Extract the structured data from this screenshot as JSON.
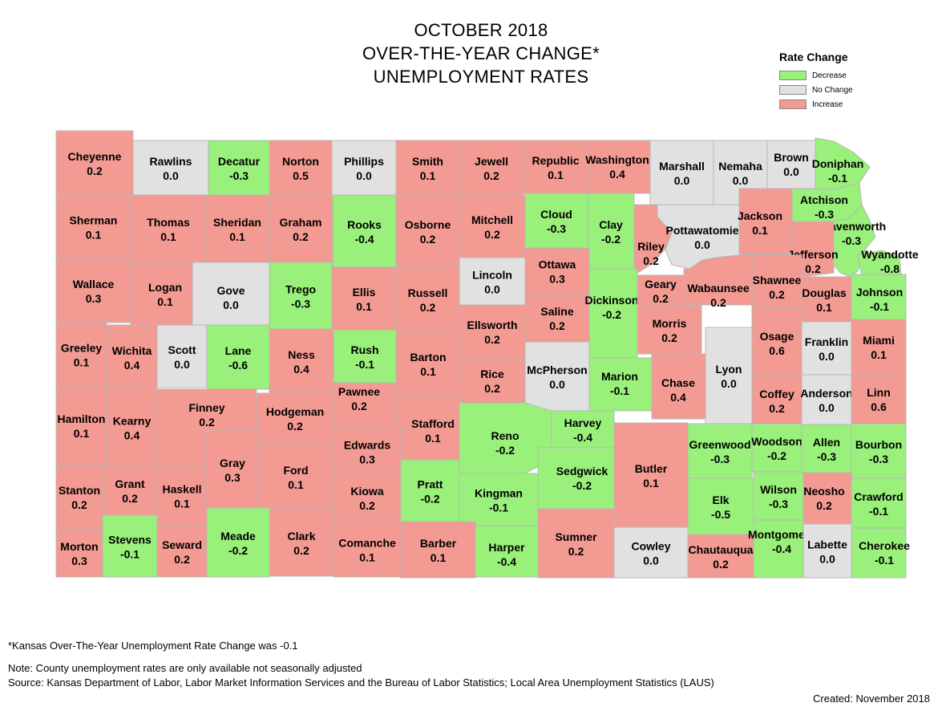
{
  "title": [
    "OCTOBER 2018",
    "OVER-THE-YEAR CHANGE*",
    "UNEMPLOYMENT RATES"
  ],
  "legend": {
    "title": "Rate Change",
    "items": [
      {
        "label": "Decrease",
        "color": "#99f07a"
      },
      {
        "label": "No Change",
        "color": "#e1e1e1"
      },
      {
        "label": "Increase",
        "color": "#f39a92"
      }
    ]
  },
  "counties": [
    {
      "name": "Cheyenne",
      "value": "0.2",
      "change": "increase"
    },
    {
      "name": "Rawlins",
      "value": "0.0",
      "change": "none"
    },
    {
      "name": "Decatur",
      "value": "-0.3",
      "change": "decrease"
    },
    {
      "name": "Norton",
      "value": "0.5",
      "change": "increase"
    },
    {
      "name": "Phillips",
      "value": "0.0",
      "change": "none"
    },
    {
      "name": "Smith",
      "value": "0.1",
      "change": "increase"
    },
    {
      "name": "Jewell",
      "value": "0.2",
      "change": "increase"
    },
    {
      "name": "Republic",
      "value": "0.1",
      "change": "increase"
    },
    {
      "name": "Washington",
      "value": "0.4",
      "change": "increase"
    },
    {
      "name": "Marshall",
      "value": "0.0",
      "change": "none"
    },
    {
      "name": "Nemaha",
      "value": "0.0",
      "change": "none"
    },
    {
      "name": "Brown",
      "value": "0.0",
      "change": "none"
    },
    {
      "name": "Doniphan",
      "value": "-0.1",
      "change": "decrease"
    },
    {
      "name": "Sherman",
      "value": "0.1",
      "change": "increase"
    },
    {
      "name": "Thomas",
      "value": "0.1",
      "change": "increase"
    },
    {
      "name": "Sheridan",
      "value": "0.1",
      "change": "increase"
    },
    {
      "name": "Graham",
      "value": "0.2",
      "change": "increase"
    },
    {
      "name": "Rooks",
      "value": "-0.4",
      "change": "decrease"
    },
    {
      "name": "Osborne",
      "value": "0.2",
      "change": "increase"
    },
    {
      "name": "Mitchell",
      "value": "0.2",
      "change": "increase"
    },
    {
      "name": "Cloud",
      "value": "-0.3",
      "change": "decrease"
    },
    {
      "name": "Clay",
      "value": "-0.2",
      "change": "decrease"
    },
    {
      "name": "Riley",
      "value": "0.2",
      "change": "increase"
    },
    {
      "name": "Pottawatomie",
      "value": "0.0",
      "change": "none"
    },
    {
      "name": "Jackson",
      "value": "0.1",
      "change": "increase"
    },
    {
      "name": "Atchison",
      "value": "-0.3",
      "change": "decrease"
    },
    {
      "name": "Leavenworth",
      "value": "-0.3",
      "change": "decrease"
    },
    {
      "name": "Jefferson",
      "value": "0.2",
      "change": "increase"
    },
    {
      "name": "Wyandotte",
      "value": "-0.8",
      "change": "decrease"
    },
    {
      "name": "Wallace",
      "value": "0.3",
      "change": "increase"
    },
    {
      "name": "Logan",
      "value": "0.1",
      "change": "increase"
    },
    {
      "name": "Gove",
      "value": "0.0",
      "change": "none"
    },
    {
      "name": "Trego",
      "value": "-0.3",
      "change": "decrease"
    },
    {
      "name": "Ellis",
      "value": "0.1",
      "change": "increase"
    },
    {
      "name": "Russell",
      "value": "0.2",
      "change": "increase"
    },
    {
      "name": "Lincoln",
      "value": "0.0",
      "change": "none"
    },
    {
      "name": "Ottawa",
      "value": "0.3",
      "change": "increase"
    },
    {
      "name": "Saline",
      "value": "0.2",
      "change": "increase"
    },
    {
      "name": "Dickinson",
      "value": "-0.2",
      "change": "decrease"
    },
    {
      "name": "Geary",
      "value": "0.2",
      "change": "increase"
    },
    {
      "name": "Wabaunsee",
      "value": "0.2",
      "change": "increase"
    },
    {
      "name": "Shawnee",
      "value": "0.2",
      "change": "increase"
    },
    {
      "name": "Douglas",
      "value": "0.1",
      "change": "increase"
    },
    {
      "name": "Johnson",
      "value": "-0.1",
      "change": "decrease"
    },
    {
      "name": "Greeley",
      "value": "0.1",
      "change": "increase"
    },
    {
      "name": "Wichita",
      "value": "0.4",
      "change": "increase"
    },
    {
      "name": "Scott",
      "value": "0.0",
      "change": "none"
    },
    {
      "name": "Lane",
      "value": "-0.6",
      "change": "decrease"
    },
    {
      "name": "Ness",
      "value": "0.4",
      "change": "increase"
    },
    {
      "name": "Rush",
      "value": "-0.1",
      "change": "decrease"
    },
    {
      "name": "Barton",
      "value": "0.1",
      "change": "increase"
    },
    {
      "name": "Ellsworth",
      "value": "0.2",
      "change": "increase"
    },
    {
      "name": "Rice",
      "value": "0.2",
      "change": "increase"
    },
    {
      "name": "McPherson",
      "value": "0.0",
      "change": "none"
    },
    {
      "name": "Marion",
      "value": "-0.1",
      "change": "decrease"
    },
    {
      "name": "Morris",
      "value": "0.2",
      "change": "increase"
    },
    {
      "name": "Chase",
      "value": "0.4",
      "change": "increase"
    },
    {
      "name": "Lyon",
      "value": "0.0",
      "change": "none"
    },
    {
      "name": "Osage",
      "value": "0.6",
      "change": "increase"
    },
    {
      "name": "Franklin",
      "value": "0.0",
      "change": "none"
    },
    {
      "name": "Miami",
      "value": "0.1",
      "change": "increase"
    },
    {
      "name": "Hamilton",
      "value": "0.1",
      "change": "increase"
    },
    {
      "name": "Kearny",
      "value": "0.4",
      "change": "increase"
    },
    {
      "name": "Finney",
      "value": "0.2",
      "change": "increase"
    },
    {
      "name": "Hodgeman",
      "value": "0.2",
      "change": "increase"
    },
    {
      "name": "Pawnee",
      "value": "0.2",
      "change": "increase"
    },
    {
      "name": "Stafford",
      "value": "0.1",
      "change": "increase"
    },
    {
      "name": "Reno",
      "value": "-0.2",
      "change": "decrease"
    },
    {
      "name": "Harvey",
      "value": "-0.4",
      "change": "decrease"
    },
    {
      "name": "Butler",
      "value": "0.1",
      "change": "increase"
    },
    {
      "name": "Greenwood",
      "value": "-0.3",
      "change": "decrease"
    },
    {
      "name": "Coffey",
      "value": "0.2",
      "change": "increase"
    },
    {
      "name": "Anderson",
      "value": "0.0",
      "change": "none"
    },
    {
      "name": "Linn",
      "value": "0.6",
      "change": "increase"
    },
    {
      "name": "Gray",
      "value": "0.3",
      "change": "increase"
    },
    {
      "name": "Ford",
      "value": "0.1",
      "change": "increase"
    },
    {
      "name": "Edwards",
      "value": "0.3",
      "change": "increase"
    },
    {
      "name": "Kiowa",
      "value": "0.2",
      "change": "increase"
    },
    {
      "name": "Pratt",
      "value": "-0.2",
      "change": "decrease"
    },
    {
      "name": "Kingman",
      "value": "-0.1",
      "change": "decrease"
    },
    {
      "name": "Sedgwick",
      "value": "-0.2",
      "change": "decrease"
    },
    {
      "name": "Woodson",
      "value": "-0.2",
      "change": "decrease"
    },
    {
      "name": "Allen",
      "value": "-0.3",
      "change": "decrease"
    },
    {
      "name": "Bourbon",
      "value": "-0.3",
      "change": "decrease"
    },
    {
      "name": "Stanton",
      "value": "0.2",
      "change": "increase"
    },
    {
      "name": "Grant",
      "value": "0.2",
      "change": "increase"
    },
    {
      "name": "Haskell",
      "value": "0.1",
      "change": "increase"
    },
    {
      "name": "Elk",
      "value": "-0.5",
      "change": "decrease"
    },
    {
      "name": "Wilson",
      "value": "-0.3",
      "change": "decrease"
    },
    {
      "name": "Neosho",
      "value": "0.2",
      "change": "increase"
    },
    {
      "name": "Crawford",
      "value": "-0.1",
      "change": "decrease"
    },
    {
      "name": "Morton",
      "value": "0.3",
      "change": "increase"
    },
    {
      "name": "Stevens",
      "value": "-0.1",
      "change": "decrease"
    },
    {
      "name": "Seward",
      "value": "0.2",
      "change": "increase"
    },
    {
      "name": "Meade",
      "value": "-0.2",
      "change": "decrease"
    },
    {
      "name": "Clark",
      "value": "0.2",
      "change": "increase"
    },
    {
      "name": "Comanche",
      "value": "0.1",
      "change": "increase"
    },
    {
      "name": "Barber",
      "value": "0.1",
      "change": "increase"
    },
    {
      "name": "Harper",
      "value": "-0.4",
      "change": "decrease"
    },
    {
      "name": "Sumner",
      "value": "0.2",
      "change": "increase"
    },
    {
      "name": "Cowley",
      "value": "0.0",
      "change": "none"
    },
    {
      "name": "Chautauqua",
      "value": "0.2",
      "change": "increase"
    },
    {
      "name": "Montgomery",
      "value": "-0.4",
      "change": "decrease"
    },
    {
      "name": "Labette",
      "value": "0.0",
      "change": "none"
    },
    {
      "name": "Cherokee",
      "value": "-0.1",
      "change": "decrease"
    }
  ],
  "footer": {
    "state_note": "*Kansas Over-The-Year Unemployment Rate Change was -0.1",
    "note": "Note: County unemployment rates are only available not seasonally adjusted",
    "source": "Source: Kansas Department of Labor, Labor Market Information Services and the Bureau of Labor Statistics; Local Area Unemployment Statistics (LAUS)",
    "created": "Created:  November 2018"
  }
}
